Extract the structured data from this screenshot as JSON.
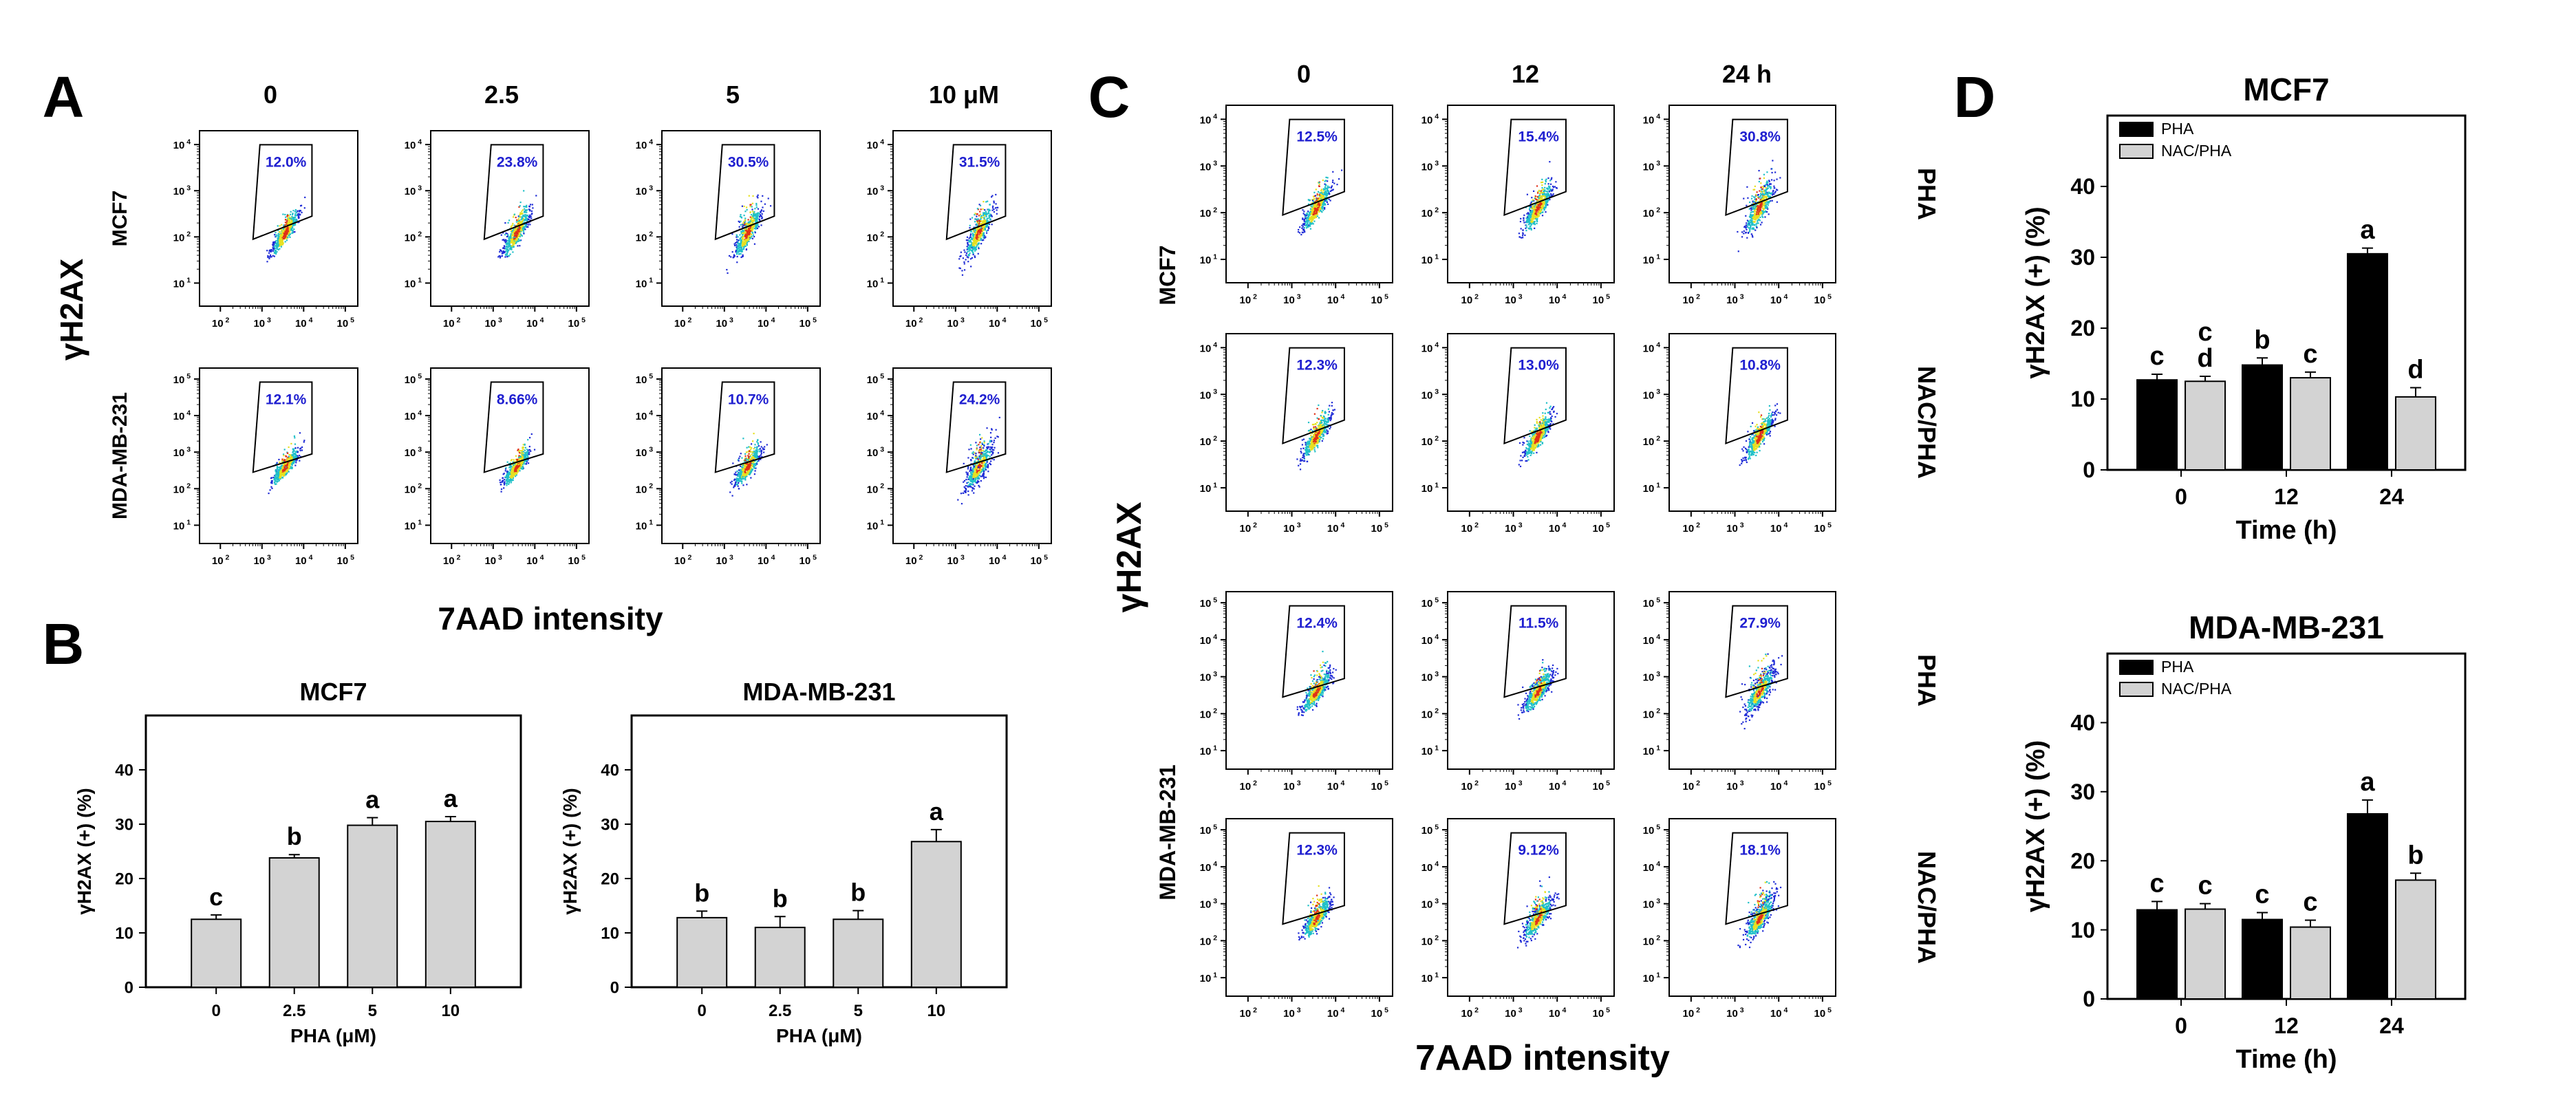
{
  "panels": {
    "A": "A",
    "B": "B",
    "C": "C",
    "D": "D"
  },
  "colors": {
    "axis": "#000000",
    "bar_pha": "#000000",
    "bar_nac": "#d3d3d3",
    "gate_text": "#1f1fd0",
    "density_low": "#1e2bd6",
    "density_mid": "#20c0c8",
    "density_high": "#e6e020",
    "density_peak": "#e03018"
  },
  "flow_a": {
    "ylabel": "γH2AX",
    "xlabel": "7AAD intensity",
    "columns": [
      "0",
      "2.5",
      "5",
      "10 μM"
    ],
    "rows": [
      {
        "label": "MCF7",
        "ymax_exp": 4,
        "gates": [
          "12.0%",
          "23.8%",
          "30.5%",
          "31.5%"
        ],
        "spread": [
          0.6,
          0.8,
          1.0,
          1.0
        ]
      },
      {
        "label": "MDA-MB-231",
        "ymax_exp": 5,
        "gates": [
          "12.1%",
          "8.66%",
          "10.7%",
          "24.2%"
        ],
        "spread": [
          0.7,
          0.7,
          0.9,
          1.4
        ]
      }
    ]
  },
  "flow_c": {
    "ylabel": "γH2AX",
    "xlabel": "7AAD intensity",
    "columns": [
      "0",
      "12",
      "24 h"
    ],
    "rows": [
      {
        "cell": "MCF7",
        "treatment": "PHA",
        "ymax_exp": 4,
        "gates": [
          "12.5%",
          "15.4%",
          "30.8%"
        ],
        "spread": [
          0.7,
          0.8,
          1.1
        ]
      },
      {
        "cell": "MCF7",
        "treatment": "NAC/PHA",
        "ymax_exp": 4,
        "gates": [
          "12.3%",
          "13.0%",
          "10.8%"
        ],
        "spread": [
          0.7,
          0.7,
          0.7
        ]
      },
      {
        "cell": "MDA-MB-231",
        "treatment": "PHA",
        "ymax_exp": 5,
        "gates": [
          "12.4%",
          "11.5%",
          "27.9%"
        ],
        "spread": [
          0.9,
          1.0,
          1.4
        ]
      },
      {
        "cell": "MDA-MB-231",
        "treatment": "NAC/PHA",
        "ymax_exp": 5,
        "gates": [
          "12.3%",
          "9.12%",
          "18.1%"
        ],
        "spread": [
          0.9,
          1.0,
          1.2
        ]
      }
    ],
    "cell_labels": [
      "MCF7",
      "MDA-MB-231"
    ]
  },
  "chart_data": [
    {
      "id": "B1",
      "type": "bar",
      "title": "MCF7",
      "xlabel": "PHA (μM)",
      "ylabel": "γH2AX (+) (%)",
      "categories": [
        "0",
        "2.5",
        "5",
        "10"
      ],
      "values": [
        12.5,
        23.8,
        29.8,
        30.5
      ],
      "errors": [
        0.8,
        0.6,
        1.4,
        0.9
      ],
      "letters": [
        "c",
        "b",
        "a",
        "a"
      ],
      "ylim": [
        0,
        50
      ],
      "yticks": [
        0,
        10,
        20,
        30,
        40
      ]
    },
    {
      "id": "B2",
      "type": "bar",
      "title": "MDA-MB-231",
      "xlabel": "PHA (μM)",
      "ylabel": "γH2AX (+) (%)",
      "categories": [
        "0",
        "2.5",
        "5",
        "10"
      ],
      "values": [
        12.8,
        11.0,
        12.5,
        26.8
      ],
      "errors": [
        1.2,
        2.0,
        1.6,
        2.2
      ],
      "letters": [
        "b",
        "b",
        "b",
        "a"
      ],
      "ylim": [
        0,
        50
      ],
      "yticks": [
        0,
        10,
        20,
        30,
        40
      ]
    },
    {
      "id": "D1",
      "type": "bar",
      "title": "MCF7",
      "xlabel": "Time (h)",
      "ylabel": "γH2AX (+) (%)",
      "categories": [
        "0",
        "12",
        "24"
      ],
      "ylim": [
        0,
        50
      ],
      "yticks": [
        0,
        10,
        20,
        30,
        40
      ],
      "legend": "top-left",
      "series": [
        {
          "name": "PHA",
          "values": [
            12.7,
            14.8,
            30.5
          ],
          "errors": [
            0.8,
            1.0,
            0.8
          ],
          "letters": [
            "c",
            "b",
            "a"
          ]
        },
        {
          "name": "NAC/PHA",
          "values": [
            12.5,
            13.0,
            10.3
          ],
          "errors": [
            0.7,
            0.8,
            1.3
          ],
          "letters": [
            "c\nd",
            "c",
            "d"
          ]
        }
      ]
    },
    {
      "id": "D2",
      "type": "bar",
      "title": "MDA-MB-231",
      "xlabel": "Time (h)",
      "ylabel": "γH2AX (+) (%)",
      "categories": [
        "0",
        "12",
        "24"
      ],
      "ylim": [
        0,
        50
      ],
      "yticks": [
        0,
        10,
        20,
        30,
        40
      ],
      "legend": "top-left",
      "series": [
        {
          "name": "PHA",
          "values": [
            12.9,
            11.5,
            26.8
          ],
          "errors": [
            1.2,
            1.0,
            2.0
          ],
          "letters": [
            "c",
            "c",
            "a"
          ]
        },
        {
          "name": "NAC/PHA",
          "values": [
            13.0,
            10.4,
            17.2
          ],
          "errors": [
            0.8,
            1.0,
            1.0
          ],
          "letters": [
            "c",
            "c",
            "b"
          ]
        }
      ]
    }
  ]
}
